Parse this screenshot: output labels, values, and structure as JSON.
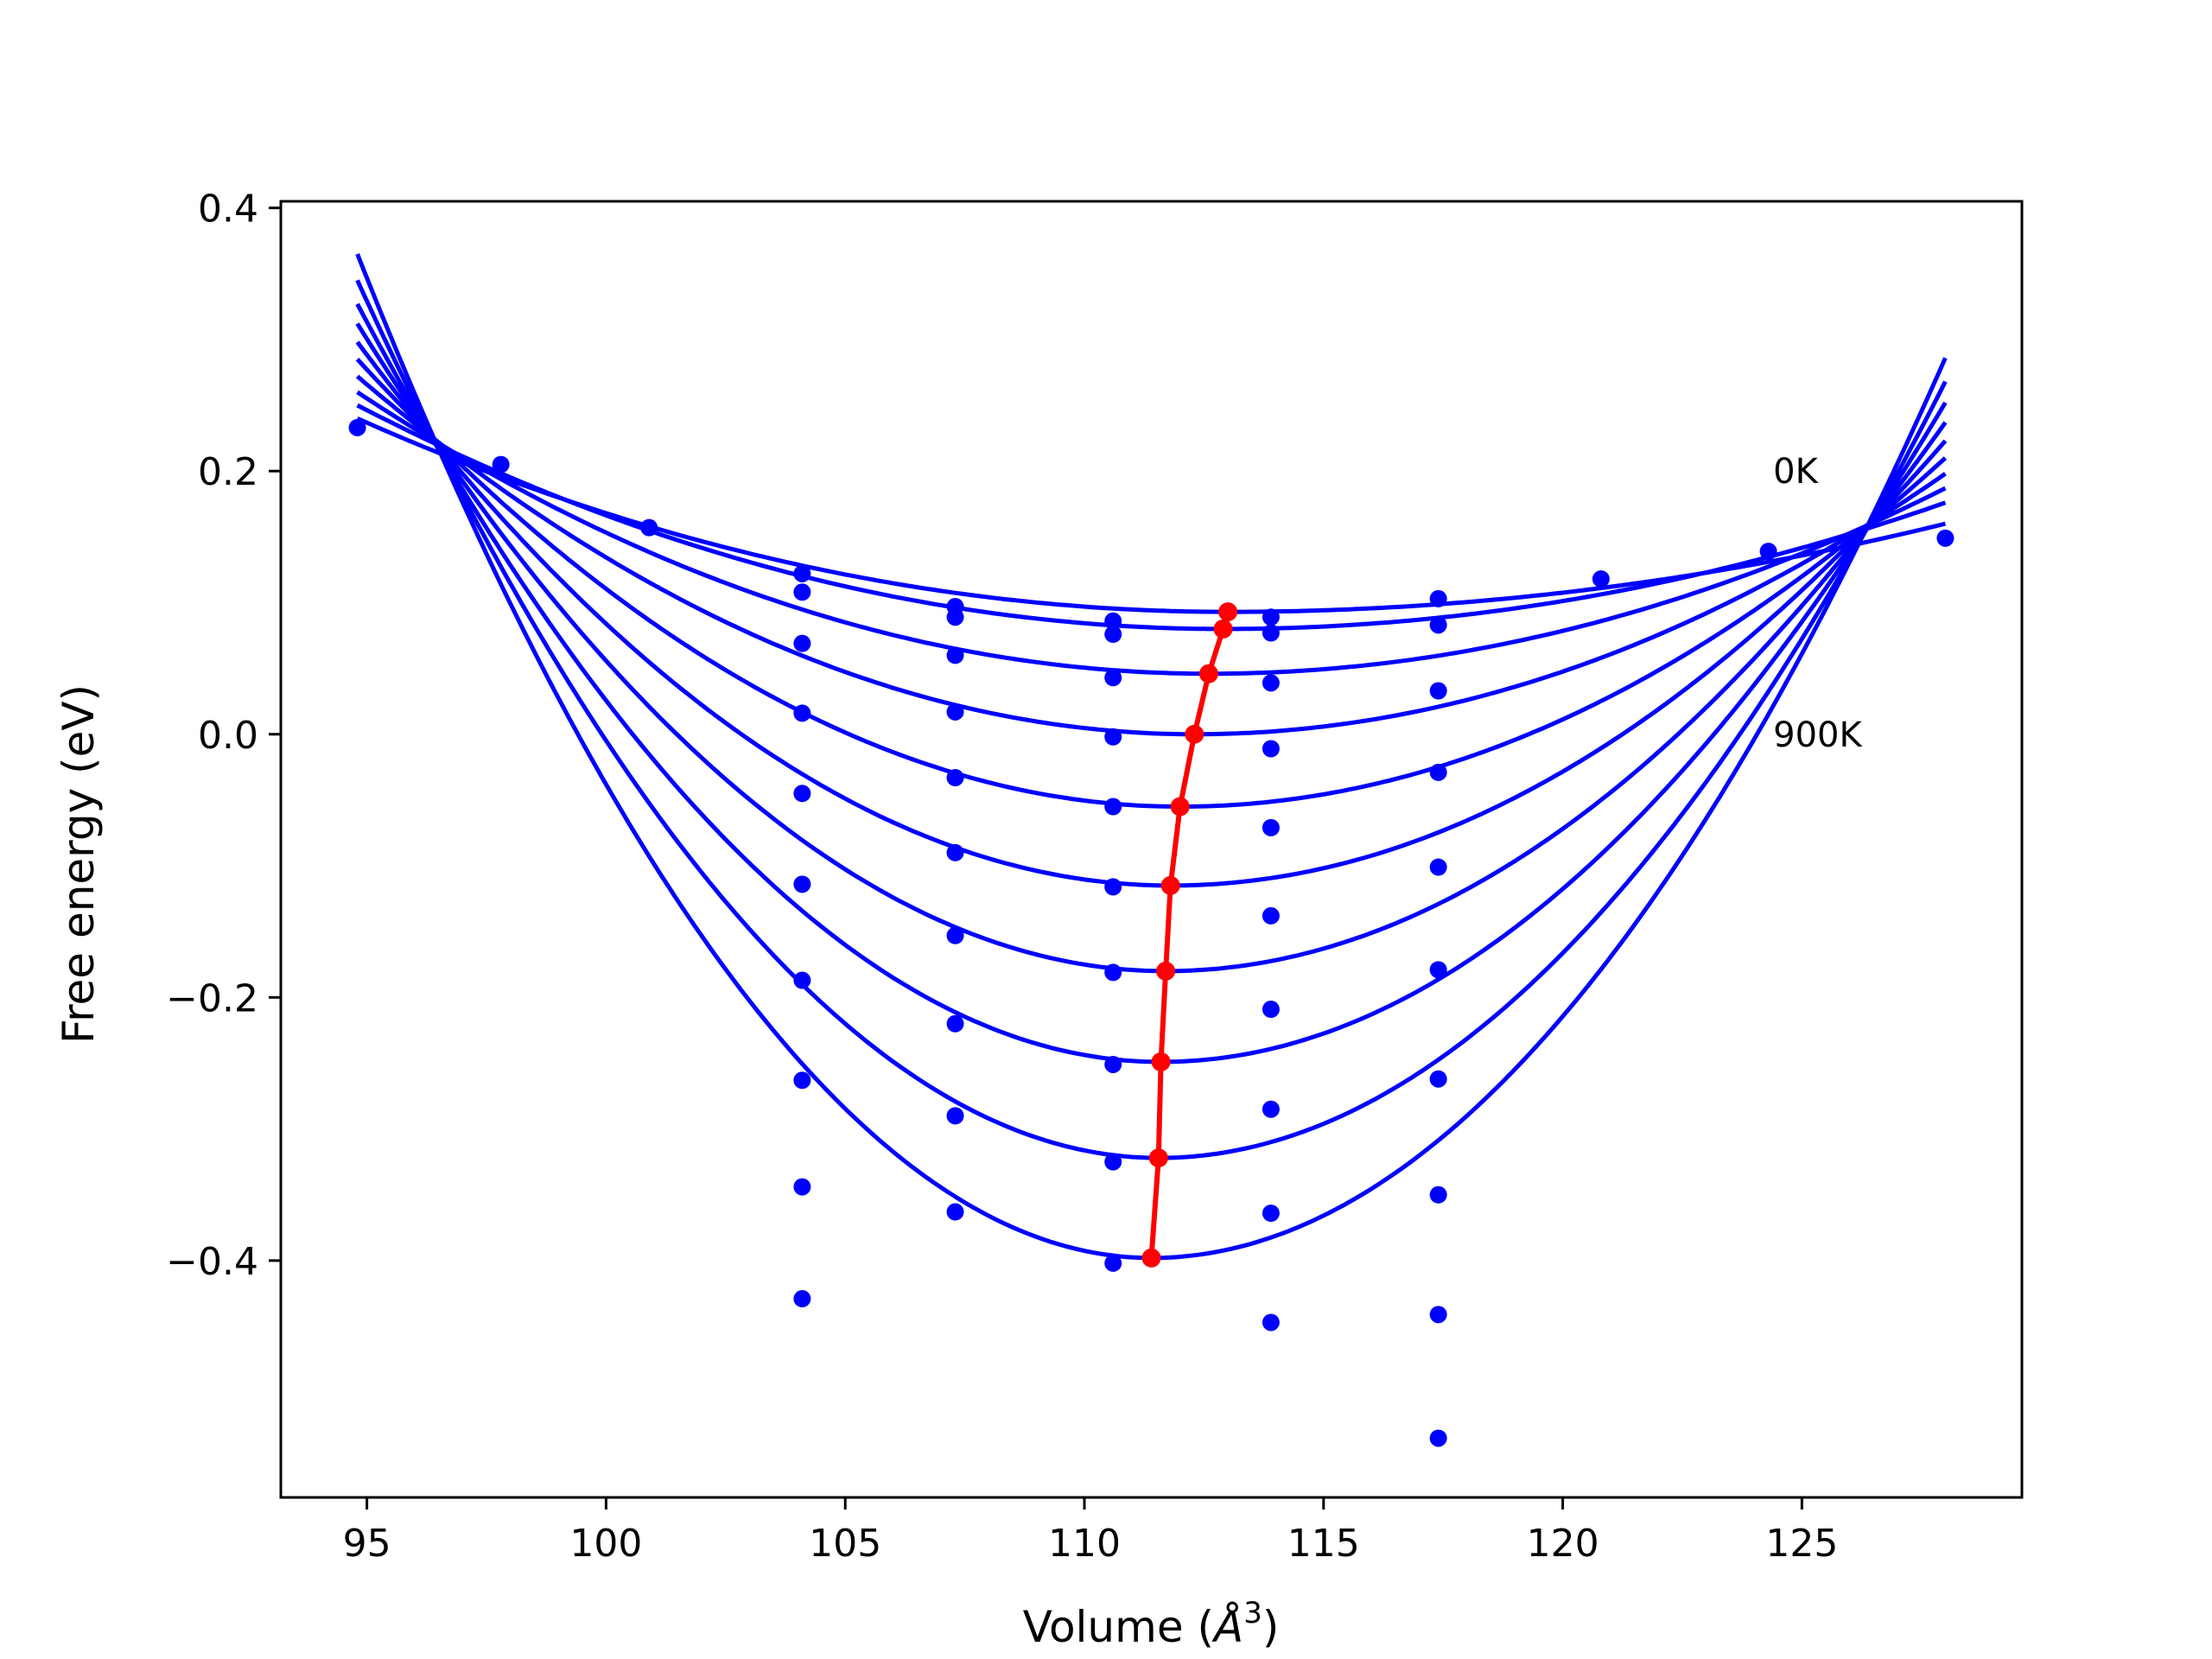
{
  "chart_data": {
    "type": "line",
    "title": "",
    "xlabel": "Volume (Å³)",
    "xlabel_parts": {
      "text": "Volume (",
      "symbol": "Å",
      "sup": "3",
      "close": ")"
    },
    "ylabel": "Free energy (eV)",
    "xlim": [
      93.2,
      129.6
    ],
    "ylim": [
      -0.58,
      0.405
    ],
    "grid": false,
    "xticks": [
      95,
      100,
      105,
      110,
      115,
      120,
      125
    ],
    "xtick_labels": [
      "95",
      "100",
      "105",
      "110",
      "115",
      "120",
      "125"
    ],
    "yticks": [
      0.4,
      0.2,
      0.0,
      -0.2,
      -0.4
    ],
    "ytick_labels": [
      "0.4",
      "0.2",
      "0.0",
      "−0.2",
      "−0.4"
    ],
    "fit_x_range": [
      94.8,
      128.0
    ],
    "colors": {
      "fit": "#0000ff",
      "points": "#0000ff",
      "minima": "#ff0000"
    },
    "annotations": [
      {
        "text": "0K",
        "x": 124.4,
        "y": 0.2
      },
      {
        "text": "900K",
        "x": 124.4,
        "y": 0.0
      }
    ],
    "series": [
      {
        "values": {
          "vmin": 111.4,
          "fmin": -0.398,
          "left": 0.365,
          "right": 0.286
        }
      },
      {
        "values": {
          "vmin": 111.55,
          "fmin": -0.322,
          "left": 0.345,
          "right": 0.268
        }
      },
      {
        "values": {
          "vmin": 111.6,
          "fmin": -0.249,
          "left": 0.327,
          "right": 0.252
        }
      },
      {
        "values": {
          "vmin": 111.7,
          "fmin": -0.18,
          "left": 0.312,
          "right": 0.237
        }
      },
      {
        "values": {
          "vmin": 111.8,
          "fmin": -0.115,
          "left": 0.298,
          "right": 0.223
        }
      },
      {
        "values": {
          "vmin": 112.0,
          "fmin": -0.055,
          "left": 0.285,
          "right": 0.21
        }
      },
      {
        "values": {
          "vmin": 112.3,
          "fmin": 0.0,
          "left": 0.272,
          "right": 0.198
        }
      },
      {
        "values": {
          "vmin": 112.6,
          "fmin": 0.046,
          "left": 0.26,
          "right": 0.187
        }
      },
      {
        "values": {
          "vmin": 112.9,
          "fmin": 0.08,
          "left": 0.25,
          "right": 0.176
        }
      },
      {
        "values": {
          "vmin": 113.0,
          "fmin": 0.093,
          "left": 0.24,
          "right": 0.16
        }
      }
    ],
    "minima_line": {
      "x": [
        111.4,
        111.55,
        111.6,
        111.7,
        111.8,
        112.0,
        112.3,
        112.6,
        112.9,
        113.0
      ],
      "y": [
        -0.398,
        -0.322,
        -0.249,
        -0.18,
        -0.115,
        -0.055,
        0.0,
        0.046,
        0.08,
        0.093
      ]
    },
    "scatter_points": [
      {
        "x": 94.8,
        "y": 0.233
      },
      {
        "x": 97.8,
        "y": 0.205
      },
      {
        "x": 100.9,
        "y": 0.157
      },
      {
        "x": 104.1,
        "y": 0.122
      },
      {
        "x": 104.1,
        "y": 0.108
      },
      {
        "x": 104.1,
        "y": 0.069
      },
      {
        "x": 104.1,
        "y": 0.016
      },
      {
        "x": 104.1,
        "y": -0.045
      },
      {
        "x": 104.1,
        "y": -0.114
      },
      {
        "x": 104.1,
        "y": -0.187
      },
      {
        "x": 104.1,
        "y": -0.263
      },
      {
        "x": 104.1,
        "y": -0.344
      },
      {
        "x": 104.1,
        "y": -0.429
      },
      {
        "x": 107.3,
        "y": 0.097
      },
      {
        "x": 107.3,
        "y": 0.089
      },
      {
        "x": 107.3,
        "y": 0.06
      },
      {
        "x": 107.3,
        "y": 0.017
      },
      {
        "x": 107.3,
        "y": -0.033
      },
      {
        "x": 107.3,
        "y": -0.09
      },
      {
        "x": 107.3,
        "y": -0.153
      },
      {
        "x": 107.3,
        "y": -0.22
      },
      {
        "x": 107.3,
        "y": -0.29
      },
      {
        "x": 107.3,
        "y": -0.363
      },
      {
        "x": 110.6,
        "y": 0.086
      },
      {
        "x": 110.6,
        "y": 0.076
      },
      {
        "x": 110.6,
        "y": 0.043
      },
      {
        "x": 110.6,
        "y": -0.002
      },
      {
        "x": 110.6,
        "y": -0.055
      },
      {
        "x": 110.6,
        "y": -0.116
      },
      {
        "x": 110.6,
        "y": -0.181
      },
      {
        "x": 110.6,
        "y": -0.251
      },
      {
        "x": 110.6,
        "y": -0.325
      },
      {
        "x": 110.6,
        "y": -0.402
      },
      {
        "x": 113.9,
        "y": 0.089
      },
      {
        "x": 113.9,
        "y": 0.077
      },
      {
        "x": 113.9,
        "y": 0.039
      },
      {
        "x": 113.9,
        "y": -0.011
      },
      {
        "x": 113.9,
        "y": -0.071
      },
      {
        "x": 113.9,
        "y": -0.138
      },
      {
        "x": 113.9,
        "y": -0.209
      },
      {
        "x": 113.9,
        "y": -0.285
      },
      {
        "x": 113.9,
        "y": -0.364
      },
      {
        "x": 113.9,
        "y": -0.447
      },
      {
        "x": 117.4,
        "y": 0.103
      },
      {
        "x": 117.4,
        "y": 0.083
      },
      {
        "x": 117.4,
        "y": 0.033
      },
      {
        "x": 117.4,
        "y": -0.029
      },
      {
        "x": 117.4,
        "y": -0.101
      },
      {
        "x": 117.4,
        "y": -0.179
      },
      {
        "x": 117.4,
        "y": -0.262
      },
      {
        "x": 117.4,
        "y": -0.35
      },
      {
        "x": 117.4,
        "y": -0.441
      },
      {
        "x": 117.4,
        "y": -0.535
      },
      {
        "x": 120.8,
        "y": 0.118
      },
      {
        "x": 124.3,
        "y": 0.139
      },
      {
        "x": 128.0,
        "y": 0.149
      }
    ]
  }
}
